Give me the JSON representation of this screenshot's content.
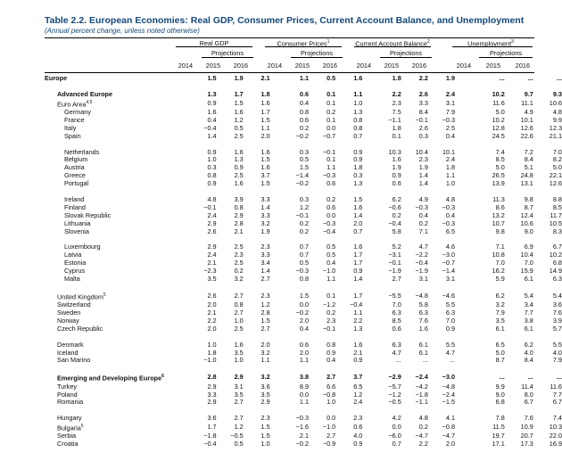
{
  "title": "Table 2.2. European Economies: Real GDP, Consumer Prices, Current Account Balance, and Unemployment",
  "subtitle": "(Annual percent change, unless noted otherwise)",
  "groups": {
    "gdp": "Real GDP",
    "cpi": "Consumer Prices",
    "cpi_note": "1",
    "cab": "Current Account Balance",
    "cab_note": "2",
    "unemp": "Unemployment",
    "unemp_note": "3",
    "projections": "Projections"
  },
  "years": [
    "2014",
    "2015",
    "2016"
  ],
  "rows": [
    {
      "label": "Europe",
      "level": 0,
      "bold": true,
      "values": [
        "1.5",
        "1.9",
        "2.1",
        "1.1",
        "0.5",
        "1.6",
        "1.8",
        "2.2",
        "1.9",
        "...",
        "...",
        "..."
      ]
    },
    {
      "spacer": true
    },
    {
      "label": "Advanced Europe",
      "level": 1,
      "bold": true,
      "values": [
        "1.3",
        "1.7",
        "1.8",
        "0.6",
        "0.1",
        "1.1",
        "2.2",
        "2.6",
        "2.4",
        "10.2",
        "9.7",
        "9.3"
      ]
    },
    {
      "label": "Euro Area",
      "note": "4,5",
      "level": 1,
      "values": [
        "0.9",
        "1.5",
        "1.6",
        "0.4",
        "0.1",
        "1.0",
        "2.3",
        "3.3",
        "3.1",
        "11.6",
        "11.1",
        "10.6"
      ]
    },
    {
      "label": "Germany",
      "level": 2,
      "values": [
        "1.6",
        "1.6",
        "1.7",
        "0.8",
        "0.2",
        "1.3",
        "7.5",
        "8.4",
        "7.9",
        "5.0",
        "4.9",
        "4.8"
      ]
    },
    {
      "label": "France",
      "level": 2,
      "values": [
        "0.4",
        "1.2",
        "1.5",
        "0.6",
        "0.1",
        "0.8",
        "−1.1",
        "−0.1",
        "−0.3",
        "10.2",
        "10.1",
        "9.9"
      ]
    },
    {
      "label": "Italy",
      "level": 2,
      "values": [
        "−0.4",
        "0.5",
        "1.1",
        "0.2",
        "0.0",
        "0.8",
        "1.8",
        "2.6",
        "2.5",
        "12.8",
        "12.6",
        "12.3"
      ]
    },
    {
      "label": "Spain",
      "level": 2,
      "values": [
        "1.4",
        "2.5",
        "2.0",
        "−0.2",
        "−0.7",
        "0.7",
        "0.1",
        "0.3",
        "0.4",
        "24.5",
        "22.6",
        "21.1"
      ]
    },
    {
      "spacer": true
    },
    {
      "label": "Netherlands",
      "level": 2,
      "values": [
        "0.9",
        "1.6",
        "1.6",
        "0.3",
        "−0.1",
        "0.9",
        "10.3",
        "10.4",
        "10.1",
        "7.4",
        "7.2",
        "7.0"
      ]
    },
    {
      "label": "Belgium",
      "level": 2,
      "values": [
        "1.0",
        "1.3",
        "1.5",
        "0.5",
        "0.1",
        "0.9",
        "1.6",
        "2.3",
        "2.4",
        "8.5",
        "8.4",
        "8.2"
      ]
    },
    {
      "label": "Austria",
      "level": 2,
      "values": [
        "0.3",
        "0.9",
        "1.6",
        "1.5",
        "1.1",
        "1.8",
        "1.9",
        "1.9",
        "1.8",
        "5.0",
        "5.1",
        "5.0"
      ]
    },
    {
      "label": "Greece",
      "level": 2,
      "values": [
        "0.8",
        "2.5",
        "3.7",
        "−1.4",
        "−0.3",
        "0.3",
        "0.9",
        "1.4",
        "1.1",
        "26.5",
        "24.8",
        "22.1"
      ]
    },
    {
      "label": "Portugal",
      "level": 2,
      "values": [
        "0.9",
        "1.6",
        "1.5",
        "−0.2",
        "0.6",
        "1.3",
        "0.6",
        "1.4",
        "1.0",
        "13.9",
        "13.1",
        "12.6"
      ]
    },
    {
      "spacer": true
    },
    {
      "label": "Ireland",
      "level": 2,
      "values": [
        "4.8",
        "3.9",
        "3.3",
        "0.3",
        "0.2",
        "1.5",
        "6.2",
        "4.9",
        "4.8",
        "11.3",
        "9.8",
        "8.8"
      ]
    },
    {
      "label": "Finland",
      "level": 2,
      "values": [
        "−0.1",
        "0.8",
        "1.4",
        "1.2",
        "0.6",
        "1.6",
        "−0.6",
        "−0.3",
        "−0.3",
        "8.6",
        "8.7",
        "8.5"
      ]
    },
    {
      "label": "Slovak Republic",
      "level": 2,
      "values": [
        "2.4",
        "2.9",
        "3.3",
        "−0.1",
        "0.0",
        "1.4",
        "0.2",
        "0.4",
        "0.4",
        "13.2",
        "12.4",
        "11.7"
      ]
    },
    {
      "label": "Lithuania",
      "level": 2,
      "values": [
        "2.9",
        "2.8",
        "3.2",
        "0.2",
        "−0.3",
        "2.0",
        "−0.4",
        "0.2",
        "−0.3",
        "10.7",
        "10.6",
        "10.5"
      ]
    },
    {
      "label": "Slovenia",
      "level": 2,
      "values": [
        "2.6",
        "2.1",
        "1.9",
        "0.2",
        "−0.4",
        "0.7",
        "5.8",
        "7.1",
        "6.5",
        "9.8",
        "9.0",
        "8.3"
      ]
    },
    {
      "spacer": true
    },
    {
      "label": "Luxembourg",
      "level": 2,
      "values": [
        "2.9",
        "2.5",
        "2.3",
        "0.7",
        "0.5",
        "1.6",
        "5.2",
        "4.7",
        "4.6",
        "7.1",
        "6.9",
        "6.7"
      ]
    },
    {
      "label": "Latvia",
      "level": 2,
      "values": [
        "2.4",
        "2.3",
        "3.3",
        "0.7",
        "0.5",
        "1.7",
        "−3.1",
        "−2.2",
        "−3.0",
        "10.8",
        "10.4",
        "10.2"
      ]
    },
    {
      "label": "Estonia",
      "level": 2,
      "values": [
        "2.1",
        "2.5",
        "3.4",
        "0.5",
        "0.4",
        "1.7",
        "−0.1",
        "−0.4",
        "−0.7",
        "7.0",
        "7.0",
        "6.8"
      ]
    },
    {
      "label": "Cyprus",
      "level": 2,
      "values": [
        "−2.3",
        "0.2",
        "1.4",
        "−0.3",
        "−1.0",
        "0.9",
        "−1.9",
        "−1.9",
        "−1.4",
        "16.2",
        "15.9",
        "14.9"
      ]
    },
    {
      "label": "Malta",
      "level": 2,
      "values": [
        "3.5",
        "3.2",
        "2.7",
        "0.8",
        "1.1",
        "1.4",
        "2.7",
        "3.1",
        "3.1",
        "5.9",
        "6.1",
        "6.3"
      ]
    },
    {
      "spacer": true
    },
    {
      "label": "United Kingdom",
      "note": "5",
      "level": 1,
      "values": [
        "2.6",
        "2.7",
        "2.3",
        "1.5",
        "0.1",
        "1.7",
        "−5.5",
        "−4.8",
        "−4.6",
        "6.2",
        "5.4",
        "5.4"
      ]
    },
    {
      "label": "Switzerland",
      "level": 1,
      "values": [
        "2.0",
        "0.8",
        "1.2",
        "0.0",
        "−1.2",
        "−0.4",
        "7.0",
        "5.8",
        "5.5",
        "3.2",
        "3.4",
        "3.6"
      ]
    },
    {
      "label": "Sweden",
      "level": 1,
      "values": [
        "2.1",
        "2.7",
        "2.8",
        "−0.2",
        "0.2",
        "1.1",
        "6.3",
        "6.3",
        "6.3",
        "7.9",
        "7.7",
        "7.6"
      ]
    },
    {
      "label": "Norway",
      "level": 1,
      "values": [
        "2.2",
        "1.0",
        "1.5",
        "2.0",
        "2.3",
        "2.2",
        "8.5",
        "7.6",
        "7.0",
        "3.5",
        "3.8",
        "3.9"
      ]
    },
    {
      "label": "Czech Republic",
      "level": 1,
      "values": [
        "2.0",
        "2.5",
        "2.7",
        "0.4",
        "−0.1",
        "1.3",
        "0.6",
        "1.6",
        "0.9",
        "6.1",
        "6.1",
        "5.7"
      ]
    },
    {
      "spacer": true
    },
    {
      "label": "Denmark",
      "level": 1,
      "values": [
        "1.0",
        "1.6",
        "2.0",
        "0.6",
        "0.8",
        "1.6",
        "6.3",
        "6.1",
        "5.5",
        "6.5",
        "6.2",
        "5.5"
      ]
    },
    {
      "label": "Iceland",
      "level": 1,
      "values": [
        "1.8",
        "3.5",
        "3.2",
        "2.0",
        "0.9",
        "2.1",
        "4.7",
        "6.1",
        "4.7",
        "5.0",
        "4.0",
        "4.0"
      ]
    },
    {
      "label": "San Marino",
      "level": 1,
      "values": [
        "−1.0",
        "1.0",
        "1.1",
        "1.1",
        "0.4",
        "0.9",
        "...",
        "...",
        "...",
        "8.7",
        "8.4",
        "7.9"
      ]
    },
    {
      "spacer": true
    },
    {
      "label": "Emerging and Developing Europe",
      "note": "6",
      "level": 1,
      "bold": true,
      "values": [
        "2.8",
        "2.9",
        "3.2",
        "3.8",
        "2.7",
        "3.7",
        "−2.9",
        "−2.4",
        "−3.0",
        "...",
        "...",
        "..."
      ]
    },
    {
      "label": "Turkey",
      "level": 1,
      "values": [
        "2.9",
        "3.1",
        "3.6",
        "8.9",
        "6.6",
        "6.5",
        "−5.7",
        "−4.2",
        "−4.8",
        "9.9",
        "11.4",
        "11.6"
      ]
    },
    {
      "label": "Poland",
      "level": 1,
      "values": [
        "3.3",
        "3.5",
        "3.5",
        "0.0",
        "−0.8",
        "1.2",
        "−1.2",
        "−1.8",
        "−2.4",
        "9.0",
        "8.0",
        "7.7"
      ]
    },
    {
      "label": "Romania",
      "level": 1,
      "values": [
        "2.9",
        "2.7",
        "2.9",
        "1.1",
        "1.0",
        "2.4",
        "−0.5",
        "−1.1",
        "−1.5",
        "6.8",
        "6.7",
        "6.7"
      ]
    },
    {
      "spacer": true
    },
    {
      "label": "Hungary",
      "level": 1,
      "values": [
        "3.6",
        "2.7",
        "2.3",
        "−0.3",
        "0.0",
        "2.3",
        "4.2",
        "4.8",
        "4.1",
        "7.8",
        "7.6",
        "7.4"
      ]
    },
    {
      "label": "Bulgaria",
      "note": "5",
      "level": 1,
      "values": [
        "1.7",
        "1.2",
        "1.5",
        "−1.6",
        "−1.0",
        "0.6",
        "0.0",
        "0.2",
        "−0.8",
        "11.5",
        "10.9",
        "10.3"
      ]
    },
    {
      "label": "Serbia",
      "level": 1,
      "values": [
        "−1.8",
        "−0.5",
        "1.5",
        "2.1",
        "2.7",
        "4.0",
        "−6.0",
        "−4.7",
        "−4.7",
        "19.7",
        "20.7",
        "22.0"
      ]
    },
    {
      "label": "Croatia",
      "level": 1,
      "values": [
        "−0.4",
        "0.5",
        "1.0",
        "−0.2",
        "−0.9",
        "0.9",
        "0.7",
        "2.2",
        "2.0",
        "17.1",
        "17.3",
        "16.9"
      ]
    }
  ]
}
